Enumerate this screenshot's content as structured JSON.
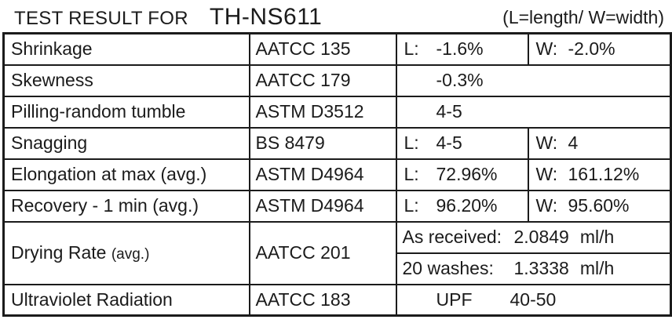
{
  "header": {
    "title": "TEST RESULT FOR",
    "model": "TH-NS611",
    "legend": "(L=length/ W=width)"
  },
  "colors": {
    "text": "#1b1b1b",
    "border": "#1b1b1b",
    "background": "#ffffff"
  },
  "table": {
    "rows": [
      {
        "test": "Shrinkage",
        "method": "AATCC 135",
        "l_label": "L:",
        "l_value": "-1.6%",
        "w_label": "W:",
        "w_value": "-2.0%"
      },
      {
        "test": "Skewness",
        "method": "AATCC 179",
        "value": "-0.3%"
      },
      {
        "test": "Pilling-random tumble",
        "method": "ASTM D3512",
        "value": "4-5"
      },
      {
        "test": "Snagging",
        "method": "BS 8479",
        "l_label": "L:",
        "l_value": "4-5",
        "w_label": "W:",
        "w_value": "4"
      },
      {
        "test": "Elongation at max (avg.)",
        "method": "ASTM D4964",
        "l_label": "L:",
        "l_value": "72.96%",
        "w_label": "W:",
        "w_value": "161.12%"
      },
      {
        "test": "Recovery - 1 min (avg.)",
        "method": "ASTM D4964",
        "l_label": "L:",
        "l_value": "96.20%",
        "w_label": "W:",
        "w_value": "95.60%"
      },
      {
        "test": "Drying Rate",
        "test_suffix": "(avg.)",
        "method": "AATCC 201",
        "sub_rows": [
          {
            "label": "As received:",
            "value": "2.0849",
            "unit": "ml/h"
          },
          {
            "label": "20 washes:",
            "value": "1.3338",
            "unit": "ml/h"
          }
        ]
      },
      {
        "test": "Ultraviolet Radiation",
        "method": "AATCC 183",
        "value_label": "UPF",
        "value": "40-50"
      }
    ]
  }
}
